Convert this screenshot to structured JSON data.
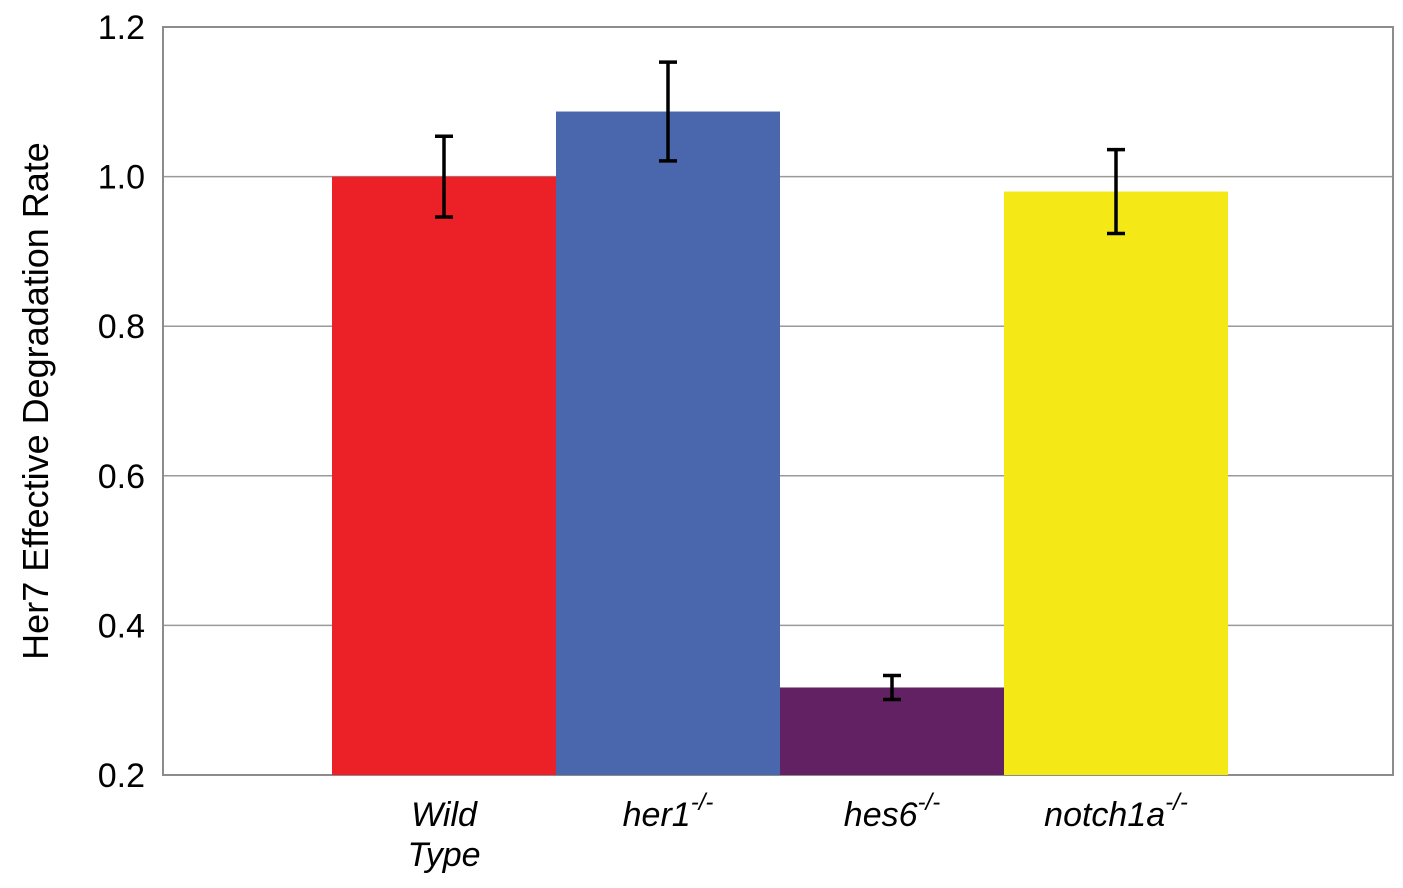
{
  "chart_data": {
    "type": "bar",
    "ylabel": "Her7 Effective Degradation Rate",
    "xlabel": "",
    "ylim": [
      0.2,
      1.2
    ],
    "yticks": [
      "0.2",
      "0.4",
      "0.6",
      "0.8",
      "1.0",
      "1.2"
    ],
    "grid": true,
    "categories": [
      {
        "label": "Wild Type",
        "lines": [
          "Wild",
          "Type"
        ],
        "sup": ""
      },
      {
        "label": "her1-/-",
        "lines": [
          "her1"
        ],
        "sup": "-/-"
      },
      {
        "label": "hes6-/-",
        "lines": [
          "hes6"
        ],
        "sup": "-/-"
      },
      {
        "label": "notch1a-/-",
        "lines": [
          "notch1a"
        ],
        "sup": "-/-"
      }
    ],
    "values": [
      1.0,
      1.087,
      0.317,
      0.98
    ],
    "errors": [
      0.054,
      0.066,
      0.016,
      0.056
    ],
    "colors": [
      "#ec2027",
      "#4a67ae",
      "#622162",
      "#f4e916"
    ]
  }
}
